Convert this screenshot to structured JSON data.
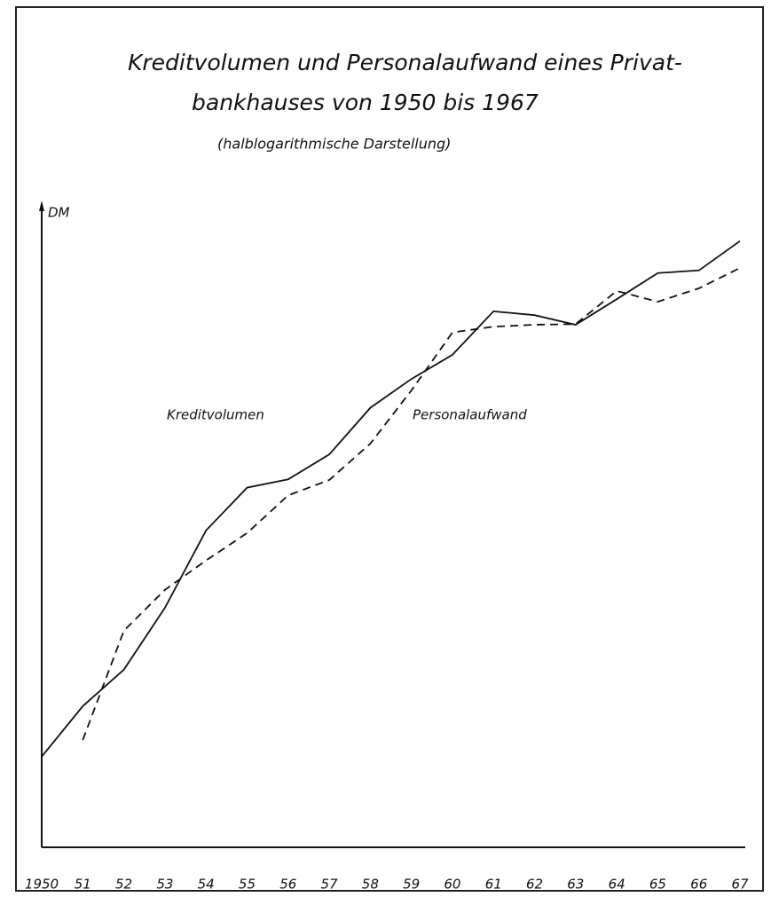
{
  "chart_data": {
    "type": "line",
    "title": [
      "Kreditvolumen und Personalaufwand eines Privat-",
      "bankhauses von 1950 bis 1967"
    ],
    "subtitle": "(halblogarithmische Darstellung)",
    "y_label": "DM",
    "categories": [
      "1950",
      "51",
      "52",
      "53",
      "54",
      "55",
      "56",
      "57",
      "58",
      "59",
      "60",
      "61",
      "62",
      "63",
      "64",
      "65",
      "66",
      "67"
    ],
    "series": [
      {
        "name": "Kreditvolumen",
        "color": "#111111",
        "dashed": false,
        "values": [
          14.2,
          22.1,
          27.8,
          37.5,
          49.6,
          56.3,
          57.6,
          61.5,
          68.8,
          73.3,
          77.1,
          83.9,
          83.3,
          81.8,
          85.8,
          89.9,
          90.3,
          94.9
        ]
      },
      {
        "name": "Personalaufwand",
        "color": "#111111",
        "dashed": true,
        "values": [
          null,
          16.8,
          33.9,
          40.3,
          44.9,
          49.2,
          55.1,
          57.5,
          63.2,
          71.5,
          80.6,
          81.5,
          81.8,
          81.9,
          87.1,
          85.4,
          87.5,
          90.7
        ]
      }
    ],
    "ylim": [
      0,
      100
    ]
  }
}
